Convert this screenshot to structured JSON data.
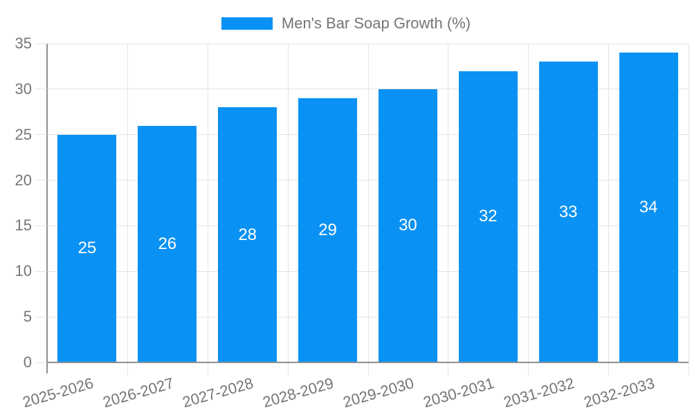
{
  "chart_data": {
    "type": "bar",
    "title": "Men's Bar Soap Growth (%)",
    "series_name": "Men's Bar Soap Growth (%)",
    "categories": [
      "2025-2026",
      "2026-2027",
      "2027-2028",
      "2028-2029",
      "2029-2030",
      "2030-2031",
      "2031-2032",
      "2032-2033"
    ],
    "values": [
      25,
      26,
      28,
      29,
      30,
      32,
      33,
      34
    ],
    "xlabel": "",
    "ylabel": "",
    "ylim": [
      0,
      35
    ],
    "yticks": [
      0,
      5,
      10,
      15,
      20,
      25,
      30,
      35
    ],
    "grid": true,
    "legend_position": "top",
    "bar_value_labels_inside": true,
    "colors": {
      "bar": "#0992F4",
      "bar_label": "#ffffff",
      "text": "#757575",
      "grid": "#e3e3e3",
      "axis": "#8f8f8f",
      "background": "#ffffff"
    }
  }
}
